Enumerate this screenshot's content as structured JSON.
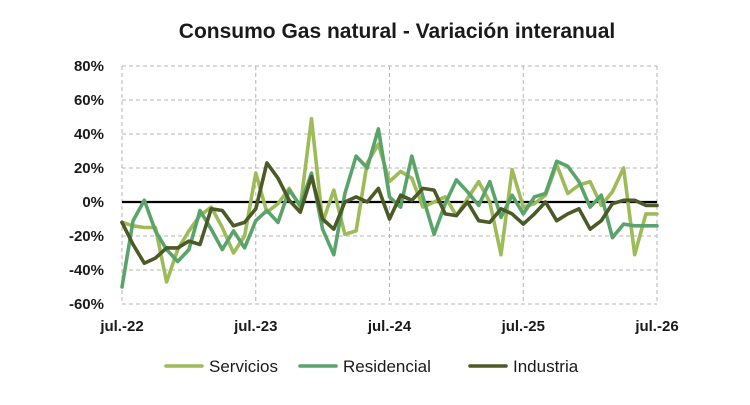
{
  "chart_data": {
    "type": "line",
    "title": "Consumo Gas natural - Variación interanual",
    "xlabel": "",
    "ylabel": "",
    "ylim": [
      -60,
      80
    ],
    "yticks": [
      -60,
      -40,
      -20,
      0,
      20,
      40,
      60,
      80
    ],
    "ytick_labels": [
      "-60%",
      "-40%",
      "-20%",
      "0%",
      "20%",
      "40%",
      "60%",
      "80%"
    ],
    "x_tick_labels": [
      "jul.-22",
      "jul.-23",
      "jul.-24",
      "jul.-25",
      "jul.-26"
    ],
    "x": [
      "jul.-22",
      "ago.-22",
      "sep.-22",
      "oct.-22",
      "nov.-22",
      "dic.-22",
      "ene.-23",
      "feb.-23",
      "mar.-23",
      "abr.-23",
      "may.-23",
      "jun.-23",
      "jul.-23",
      "ago.-23",
      "sep.-23",
      "oct.-23",
      "nov.-23",
      "dic.-23",
      "ene.-24",
      "feb.-24",
      "mar.-24",
      "abr.-24",
      "may.-24",
      "jun.-24",
      "jul.-24",
      "ago.-24",
      "sep.-24",
      "oct.-24",
      "nov.-24",
      "dic.-24",
      "ene.-25",
      "feb.-25",
      "mar.-25",
      "abr.-25",
      "may.-25",
      "jun.-25",
      "jul.-25",
      "ago.-25",
      "sep.-25",
      "oct.-25",
      "nov.-25",
      "dic.-25",
      "ene.-26",
      "feb.-26",
      "mar.-26",
      "abr.-26",
      "may.-26",
      "jun.-26",
      "jul.-26"
    ],
    "grid": true,
    "legend_position": "bottom",
    "series": [
      {
        "name": "Servicios",
        "color": "#9dbb59",
        "values": [
          -12,
          -14,
          -15,
          -15,
          -47,
          -28,
          -17,
          -8,
          -3,
          -15,
          -30,
          -20,
          17,
          -6,
          -1,
          8,
          -3,
          49,
          -12,
          7,
          -19,
          -17,
          23,
          34,
          12,
          18,
          14,
          -3,
          0,
          3,
          -8,
          2,
          12,
          0,
          -31,
          19,
          -3,
          -1,
          4,
          22,
          5,
          10,
          12,
          -2,
          6,
          20,
          -31,
          -7,
          -7
        ],
        "values_note": "monthly year-on-year change, %"
      },
      {
        "name": "Residencial",
        "color": "#5aa36a",
        "values": [
          -50,
          -11,
          1,
          -17,
          -28,
          -35,
          -28,
          -5,
          -16,
          -28,
          -17,
          -27,
          -11,
          -5,
          -12,
          7,
          -2,
          17,
          -16,
          -31,
          5,
          27,
          20,
          43,
          3,
          -3,
          27,
          3,
          -19,
          -1,
          13,
          6,
          -2,
          12,
          -9,
          4,
          -7,
          3,
          5,
          24,
          21,
          12,
          -3,
          4,
          -21,
          -13,
          -14,
          -14,
          -14
        ]
      },
      {
        "name": "Industria",
        "color": "#4b5a26",
        "values": [
          -12,
          -25,
          -36,
          -33,
          -27,
          -27,
          -23,
          -25,
          -4,
          -5,
          -14,
          -12,
          -4,
          23,
          14,
          1,
          -6,
          15,
          -10,
          -16,
          0,
          3,
          0,
          8,
          -10,
          4,
          1,
          8,
          7,
          -7,
          -8,
          0,
          -11,
          -12,
          -4,
          -7,
          -13,
          -7,
          0,
          -11,
          -7,
          -4,
          -16,
          -11,
          -1,
          1,
          1,
          -2,
          -2
        ]
      }
    ]
  }
}
